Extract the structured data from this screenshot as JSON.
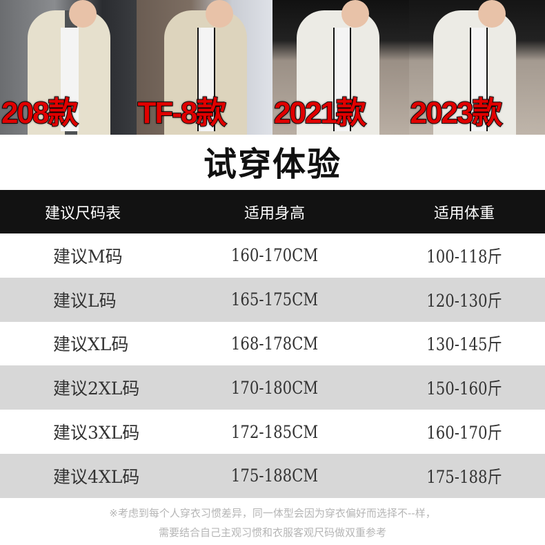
{
  "photos": [
    {
      "label": "208款"
    },
    {
      "label": "TF-8款"
    },
    {
      "label": "2021款"
    },
    {
      "label": "2023款"
    }
  ],
  "title": "试穿体验",
  "table": {
    "headers": [
      "建议尺码表",
      "适用身高",
      "适用体重"
    ],
    "rows": [
      [
        "建议M码",
        "160-170CM",
        "100-118斤"
      ],
      [
        "建议L码",
        "165-175CM",
        "120-130斤"
      ],
      [
        "建议XL码",
        "168-178CM",
        "130-145斤"
      ],
      [
        "建议2XL码",
        "170-180CM",
        "150-160斤"
      ],
      [
        "建议3XL码",
        "172-185CM",
        "160-170斤"
      ],
      [
        "建议4XL码",
        "175-188CM",
        "175-188斤"
      ]
    ]
  },
  "notes": [
    "※考虑到每个人穿衣习惯差异，同一体型会因为穿衣偏好而选择不--样，",
    "需要结合自己主观习惯和衣服客观尺码做双重参考"
  ],
  "colors": {
    "label_red": "#e00000",
    "header_bg": "#121212",
    "alt_row": "#d7d7d7"
  }
}
